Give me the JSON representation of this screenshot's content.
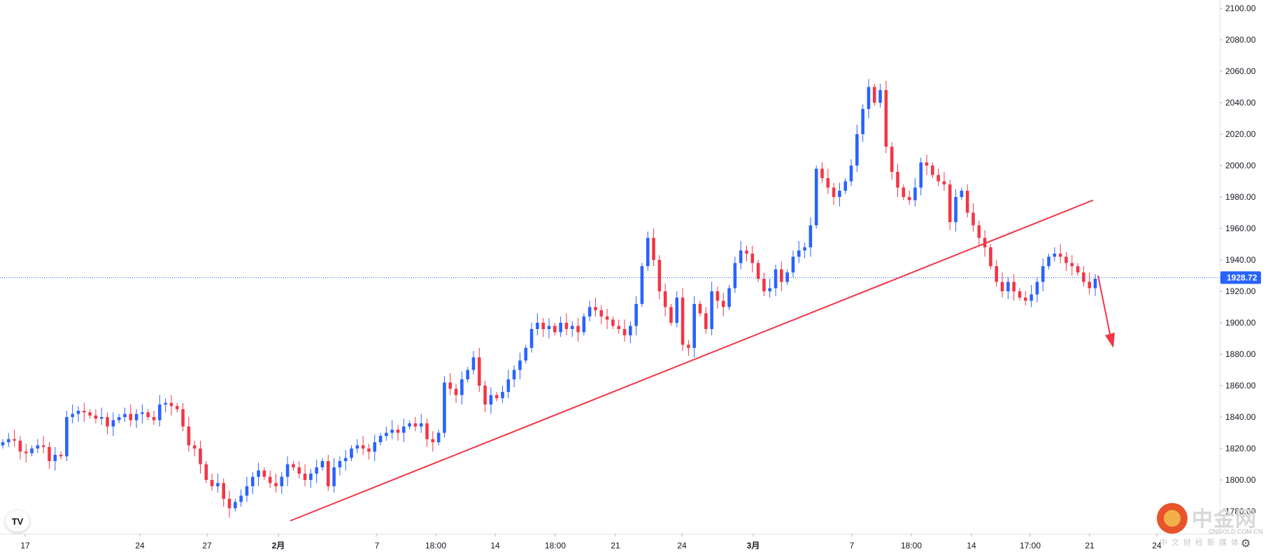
{
  "chart_data": {
    "type": "candlestick",
    "title": "",
    "xlabel": "",
    "ylabel": "",
    "ylim": [
      1770,
      2105
    ],
    "y_ticks": [
      "2100.00",
      "2080.00",
      "2060.00",
      "2040.00",
      "2020.00",
      "2000.00",
      "1980.00",
      "1960.00",
      "1940.00",
      "1920.00",
      "1900.00",
      "1880.00",
      "1860.00",
      "1840.00",
      "1820.00",
      "1800.00",
      "1780.00"
    ],
    "x_ticks": [
      "17",
      "24",
      "27",
      "2月",
      "7",
      "18:00",
      "14",
      "18:00",
      "21",
      "24",
      "3月",
      "7",
      "18:00",
      "14",
      "17:00",
      "21",
      "24"
    ],
    "bold_x_ticks": [
      "2月",
      "3月"
    ],
    "current_price": "1928.72",
    "colors": {
      "up": "#2962ff",
      "down": "#f23645",
      "trendline": "#f23645",
      "price_line": "#2962ff"
    },
    "trendline": {
      "start": {
        "bar": 0,
        "price": 1774
      },
      "end": {
        "bar": 1,
        "price": 1978
      }
    },
    "projection_arrow": {
      "direction": "down",
      "from_price": 1930,
      "to_price": 1884
    },
    "series_close": [
      1824,
      1826,
      1825,
      1818,
      1817,
      1820,
      1822,
      1821,
      1812,
      1816,
      1815,
      1840,
      1842,
      1844,
      1843,
      1841,
      1839,
      1840,
      1834,
      1838,
      1840,
      1842,
      1838,
      1842,
      1843,
      1840,
      1838,
      1848,
      1849,
      1847,
      1845,
      1834,
      1822,
      1820,
      1810,
      1800,
      1796,
      1798,
      1788,
      1782,
      1786,
      1790,
      1796,
      1802,
      1806,
      1802,
      1798,
      1796,
      1802,
      1810,
      1808,
      1804,
      1800,
      1804,
      1808,
      1812,
      1796,
      1808,
      1812,
      1814,
      1820,
      1822,
      1820,
      1818,
      1824,
      1828,
      1830,
      1832,
      1830,
      1834,
      1836,
      1834,
      1836,
      1826,
      1824,
      1830,
      1862,
      1858,
      1854,
      1864,
      1870,
      1878,
      1860,
      1848,
      1854,
      1852,
      1856,
      1864,
      1870,
      1876,
      1884,
      1896,
      1900,
      1896,
      1898,
      1894,
      1900,
      1896,
      1898,
      1894,
      1904,
      1910,
      1908,
      1904,
      1902,
      1898,
      1896,
      1892,
      1898,
      1912,
      1936,
      1954,
      1940,
      1920,
      1910,
      1900,
      1916,
      1886,
      1884,
      1912,
      1906,
      1896,
      1920,
      1914,
      1910,
      1922,
      1938,
      1946,
      1944,
      1938,
      1928,
      1920,
      1922,
      1934,
      1926,
      1932,
      1942,
      1946,
      1948,
      1962,
      1998,
      1992,
      1986,
      1980,
      1984,
      1990,
      2000,
      2020,
      2036,
      2050,
      2040,
      2048,
      2012,
      1996,
      1986,
      1980,
      1978,
      1986,
      2002,
      2000,
      1994,
      1990,
      1988,
      1964,
      1980,
      1984,
      1970,
      1962,
      1954,
      1948,
      1936,
      1926,
      1920,
      1926,
      1920,
      1916,
      1914,
      1918,
      1926,
      1936,
      1942,
      1944,
      1942,
      1938,
      1936,
      1932,
      1926,
      1922,
      1928
    ]
  }
}
